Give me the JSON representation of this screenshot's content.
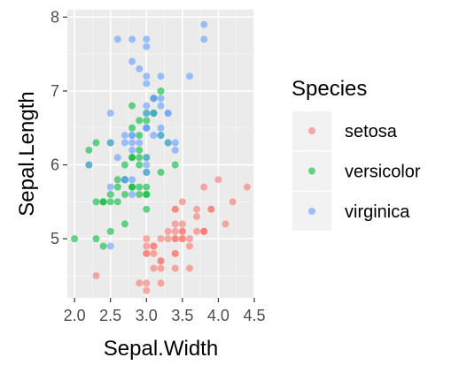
{
  "chart_data": {
    "type": "scatter",
    "xlabel": "Sepal.Width",
    "ylabel": "Sepal.Length",
    "xlim": [
      1.9,
      4.5
    ],
    "ylim": [
      4.2,
      8.1
    ],
    "x_ticks": [
      {
        "value": 2.0,
        "label": "2.0"
      },
      {
        "value": 2.5,
        "label": "2.5"
      },
      {
        "value": 3.0,
        "label": "3.0"
      },
      {
        "value": 3.5,
        "label": "3.5"
      },
      {
        "value": 4.0,
        "label": "4.0"
      },
      {
        "value": 4.5,
        "label": "4.5"
      }
    ],
    "y_ticks": [
      {
        "value": 5,
        "label": "5"
      },
      {
        "value": 6,
        "label": "6"
      },
      {
        "value": 7,
        "label": "7"
      },
      {
        "value": 8,
        "label": "8"
      }
    ],
    "grid": true,
    "point_alpha": 0.6,
    "legend": {
      "title": "Species",
      "position": "right"
    },
    "series": [
      {
        "name": "setosa",
        "color": "#F8766D",
        "points": [
          [
            3.5,
            5.1
          ],
          [
            3.0,
            4.9
          ],
          [
            3.2,
            4.7
          ],
          [
            3.1,
            4.6
          ],
          [
            3.6,
            5.0
          ],
          [
            3.9,
            5.4
          ],
          [
            3.4,
            4.6
          ],
          [
            3.4,
            5.0
          ],
          [
            2.9,
            4.4
          ],
          [
            3.1,
            4.9
          ],
          [
            3.7,
            5.4
          ],
          [
            3.4,
            4.8
          ],
          [
            3.0,
            4.8
          ],
          [
            3.0,
            4.3
          ],
          [
            4.0,
            5.8
          ],
          [
            4.4,
            5.7
          ],
          [
            3.9,
            5.4
          ],
          [
            3.5,
            5.1
          ],
          [
            3.8,
            5.7
          ],
          [
            3.8,
            5.1
          ],
          [
            3.4,
            5.4
          ],
          [
            3.7,
            5.1
          ],
          [
            3.6,
            4.6
          ],
          [
            3.3,
            5.1
          ],
          [
            3.4,
            4.8
          ],
          [
            3.0,
            5.0
          ],
          [
            3.4,
            5.0
          ],
          [
            3.5,
            5.2
          ],
          [
            3.4,
            5.2
          ],
          [
            3.2,
            4.7
          ],
          [
            3.1,
            4.8
          ],
          [
            3.4,
            5.4
          ],
          [
            4.1,
            5.2
          ],
          [
            4.2,
            5.5
          ],
          [
            3.1,
            4.9
          ],
          [
            3.2,
            5.0
          ],
          [
            3.5,
            5.5
          ],
          [
            3.6,
            4.9
          ],
          [
            3.0,
            4.4
          ],
          [
            3.4,
            5.1
          ],
          [
            3.5,
            5.0
          ],
          [
            2.3,
            4.5
          ],
          [
            3.2,
            4.4
          ],
          [
            3.5,
            5.0
          ],
          [
            3.8,
            5.1
          ],
          [
            3.0,
            4.8
          ],
          [
            3.8,
            5.1
          ],
          [
            3.2,
            4.6
          ],
          [
            3.7,
            5.3
          ],
          [
            3.3,
            5.0
          ]
        ]
      },
      {
        "name": "versicolor",
        "color": "#00BA38",
        "points": [
          [
            3.2,
            7.0
          ],
          [
            3.2,
            6.4
          ],
          [
            3.1,
            6.9
          ],
          [
            2.3,
            5.5
          ],
          [
            2.8,
            6.5
          ],
          [
            2.8,
            5.7
          ],
          [
            3.3,
            6.3
          ],
          [
            2.4,
            4.9
          ],
          [
            2.9,
            6.6
          ],
          [
            2.7,
            5.2
          ],
          [
            2.0,
            5.0
          ],
          [
            3.0,
            5.9
          ],
          [
            2.2,
            6.0
          ],
          [
            2.9,
            6.1
          ],
          [
            2.9,
            5.6
          ],
          [
            3.1,
            6.7
          ],
          [
            3.0,
            5.6
          ],
          [
            2.7,
            5.8
          ],
          [
            2.2,
            6.2
          ],
          [
            2.5,
            5.6
          ],
          [
            3.2,
            5.9
          ],
          [
            2.8,
            6.1
          ],
          [
            2.5,
            6.3
          ],
          [
            2.8,
            6.1
          ],
          [
            2.9,
            6.4
          ],
          [
            3.0,
            6.6
          ],
          [
            2.8,
            6.8
          ],
          [
            3.0,
            6.7
          ],
          [
            2.9,
            6.0
          ],
          [
            2.6,
            5.7
          ],
          [
            2.4,
            5.5
          ],
          [
            2.4,
            5.5
          ],
          [
            2.7,
            5.8
          ],
          [
            2.7,
            6.0
          ],
          [
            3.0,
            5.4
          ],
          [
            3.4,
            6.0
          ],
          [
            3.1,
            6.7
          ],
          [
            2.3,
            6.3
          ],
          [
            3.0,
            5.6
          ],
          [
            2.5,
            5.5
          ],
          [
            2.6,
            5.5
          ],
          [
            3.0,
            6.1
          ],
          [
            2.6,
            5.8
          ],
          [
            2.3,
            5.0
          ],
          [
            2.7,
            5.6
          ],
          [
            3.0,
            5.7
          ],
          [
            2.9,
            5.7
          ],
          [
            2.9,
            6.2
          ],
          [
            2.5,
            5.1
          ],
          [
            2.8,
            5.7
          ]
        ]
      },
      {
        "name": "virginica",
        "color": "#619CFF",
        "points": [
          [
            3.3,
            6.3
          ],
          [
            2.7,
            5.8
          ],
          [
            3.0,
            7.1
          ],
          [
            2.9,
            6.3
          ],
          [
            3.0,
            6.5
          ],
          [
            3.0,
            7.6
          ],
          [
            2.5,
            4.9
          ],
          [
            2.9,
            7.3
          ],
          [
            2.5,
            6.7
          ],
          [
            3.6,
            7.2
          ],
          [
            3.2,
            6.5
          ],
          [
            2.7,
            6.4
          ],
          [
            3.0,
            6.8
          ],
          [
            2.5,
            5.7
          ],
          [
            2.8,
            5.8
          ],
          [
            3.2,
            6.4
          ],
          [
            3.0,
            6.5
          ],
          [
            3.8,
            7.7
          ],
          [
            2.6,
            7.7
          ],
          [
            2.2,
            6.0
          ],
          [
            3.2,
            6.9
          ],
          [
            2.8,
            5.6
          ],
          [
            2.8,
            7.7
          ],
          [
            2.7,
            6.3
          ],
          [
            3.3,
            6.7
          ],
          [
            3.2,
            7.2
          ],
          [
            2.8,
            6.2
          ],
          [
            3.0,
            6.1
          ],
          [
            2.8,
            6.4
          ],
          [
            3.0,
            7.2
          ],
          [
            2.8,
            7.4
          ],
          [
            3.8,
            7.9
          ],
          [
            2.8,
            6.4
          ],
          [
            2.8,
            6.3
          ],
          [
            2.6,
            6.1
          ],
          [
            3.0,
            7.7
          ],
          [
            3.4,
            6.3
          ],
          [
            3.1,
            6.4
          ],
          [
            3.0,
            6.0
          ],
          [
            3.1,
            6.9
          ],
          [
            3.1,
            6.7
          ],
          [
            3.1,
            6.9
          ],
          [
            2.7,
            5.8
          ],
          [
            3.2,
            6.8
          ],
          [
            3.3,
            6.7
          ],
          [
            3.0,
            6.7
          ],
          [
            2.5,
            6.3
          ],
          [
            3.0,
            6.5
          ],
          [
            3.4,
            6.2
          ],
          [
            3.0,
            5.9
          ]
        ]
      }
    ]
  }
}
